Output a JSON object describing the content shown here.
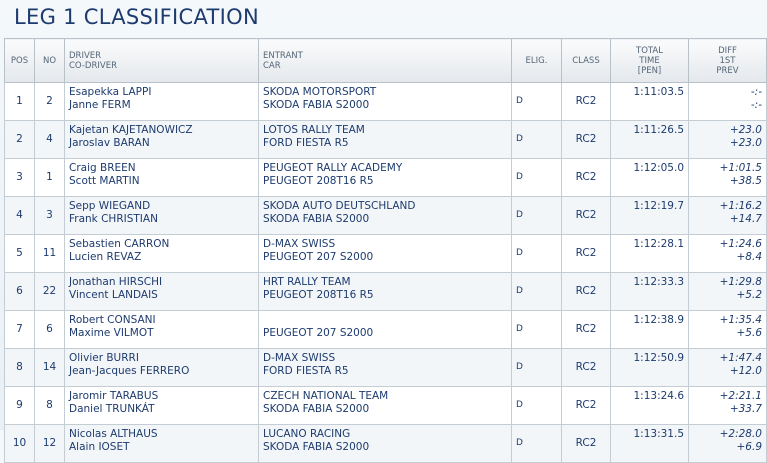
{
  "title": "LEG 1 CLASSIFICATION",
  "table": {
    "header": [
      [
        "POS"
      ],
      [
        "NO"
      ],
      [
        "DRIVER",
        "CO-DRIVER"
      ],
      [
        "ENTRANT",
        "CAR"
      ],
      [
        "ELIG."
      ],
      [
        "CLASS"
      ],
      [
        "TOTAL",
        "TIME",
        "[PEN]"
      ],
      [
        "DIFF",
        "1ST",
        "PREV"
      ]
    ],
    "rows": [
      {
        "pos": "1",
        "no": "2",
        "driver": "Esapekka LAPPI",
        "codriver": "Janne FERM",
        "entrant": "SKODA MOTORSPORT",
        "car": "SKODA FABIA S2000",
        "elig": "D",
        "class": "RC2",
        "time": "1:11:03.5",
        "diff_first": "-:-",
        "diff_prev": "-:-"
      },
      {
        "pos": "2",
        "no": "4",
        "driver": "Kajetan KAJETANOWICZ",
        "codriver": "Jaroslav BARAN",
        "entrant": "LOTOS RALLY TEAM",
        "car": "FORD FIESTA R5",
        "elig": "D",
        "class": "RC2",
        "time": "1:11:26.5",
        "diff_first": "+23.0",
        "diff_prev": "+23.0"
      },
      {
        "pos": "3",
        "no": "1",
        "driver": "Craig BREEN",
        "codriver": "Scott MARTIN",
        "entrant": "PEUGEOT RALLY ACADEMY",
        "car": "PEUGEOT 208T16 R5",
        "elig": "D",
        "class": "RC2",
        "time": "1:12:05.0",
        "diff_first": "+1:01.5",
        "diff_prev": "+38.5"
      },
      {
        "pos": "4",
        "no": "3",
        "driver": "Sepp WIEGAND",
        "codriver": "Frank CHRISTIAN",
        "entrant": "SKODA AUTO DEUTSCHLAND",
        "car": "SKODA FABIA S2000",
        "elig": "D",
        "class": "RC2",
        "time": "1:12:19.7",
        "diff_first": "+1:16.2",
        "diff_prev": "+14.7"
      },
      {
        "pos": "5",
        "no": "11",
        "driver": "Sebastien CARRON",
        "codriver": "Lucien REVAZ",
        "entrant": "D-MAX SWISS",
        "car": "PEUGEOT 207 S2000",
        "elig": "D",
        "class": "RC2",
        "time": "1:12:28.1",
        "diff_first": "+1:24.6",
        "diff_prev": "+8.4"
      },
      {
        "pos": "6",
        "no": "22",
        "driver": "Jonathan HIRSCHI",
        "codriver": "Vincent LANDAIS",
        "entrant": "HRT RALLY TEAM",
        "car": "PEUGEOT 208T16 R5",
        "elig": "D",
        "class": "RC2",
        "time": "1:12:33.3",
        "diff_first": "+1:29.8",
        "diff_prev": "+5.2"
      },
      {
        "pos": "7",
        "no": "6",
        "driver": "Robert CONSANI",
        "codriver": "Maxime VILMOT",
        "car": "PEUGEOT 207 S2000",
        "elig": "D",
        "class": "RC2",
        "time": "1:12:38.9",
        "diff_first": "+1:35.4",
        "diff_prev": "+5.6"
      },
      {
        "pos": "8",
        "no": "14",
        "driver": "Olivier BURRI",
        "codriver": "Jean-Jacques FERRERO",
        "entrant": "D-MAX SWISS",
        "car": "FORD FIESTA R5",
        "elig": "D",
        "class": "RC2",
        "time": "1:12:50.9",
        "diff_first": "+1:47.4",
        "diff_prev": "+12.0"
      },
      {
        "pos": "9",
        "no": "8",
        "driver": "Jaromir TARABUS",
        "codriver": "Daniel TRUNKÁT",
        "entrant": "CZECH NATIONAL TEAM",
        "car": "SKODA FABIA S2000",
        "elig": "D",
        "class": "RC2",
        "time": "1:13:24.6",
        "diff_first": "+2:21.1",
        "diff_prev": "+33.7"
      },
      {
        "pos": "10",
        "no": "12",
        "driver": "Nicolas ALTHAUS",
        "codriver": "Alain IOSET",
        "entrant": "LUCANO RACING",
        "car": "SKODA FABIA S2000",
        "elig": "D",
        "class": "RC2",
        "time": "1:13:31.5",
        "diff_first": "+2:28.0",
        "diff_prev": "+6.9"
      }
    ]
  }
}
